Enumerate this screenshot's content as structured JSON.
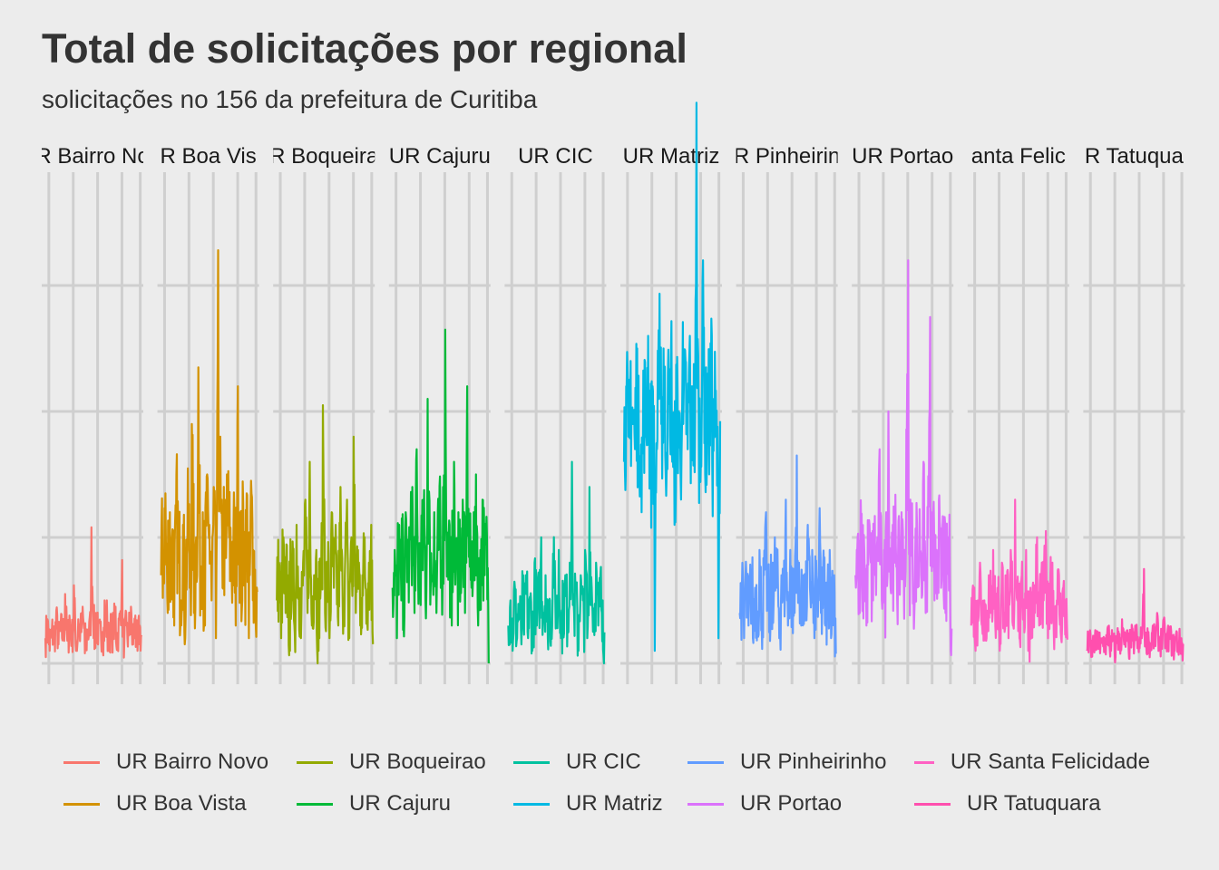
{
  "title": "Total de solicitações por regional",
  "subtitle": "solicitações no 156 da prefeitura de Curitiba",
  "chart_data": {
    "type": "line",
    "facet_by": "regional",
    "x_ticks_labeled": false,
    "y_ticks_labeled": false,
    "ylim": [
      0,
      4
    ],
    "grid": true,
    "legend_position": "bottom",
    "panels": [
      {
        "strip": "R Bairro No",
        "series": "UR Bairro Novo",
        "color": "#F8766D",
        "base": 0.21,
        "noise": 0.17,
        "values": [
          0.2,
          0.35,
          0.1,
          0.28,
          0.22,
          0.42,
          0.15,
          0.3,
          0.25,
          0.55,
          0.18,
          0.38,
          0.2,
          0.62,
          0.1,
          0.35,
          0.3,
          0.45,
          0.08,
          0.27,
          0.33,
          1.08,
          0.2,
          0.4,
          0.15,
          0.32,
          0.25,
          0.5,
          0.12,
          0.3,
          0.28,
          0.45,
          0.2,
          0.35,
          0.82,
          0.18,
          0.3,
          0.22,
          0.45,
          0.15,
          0.38,
          0.1,
          0.3,
          0.2
        ]
      },
      {
        "strip": "R Boa Vis",
        "series": "UR Boa Vista",
        "color": "#D39200",
        "base": 0.85,
        "noise": 0.55,
        "values": [
          0.7,
          0.9,
          1.35,
          0.4,
          1.2,
          0.6,
          1.0,
          0.3,
          1.5,
          0.8,
          0.5,
          1.1,
          0.2,
          0.9,
          1.3,
          0.6,
          1.9,
          0.4,
          1.0,
          2.35,
          0.7,
          1.2,
          0.3,
          1.5,
          0.9,
          1.1,
          0.5,
          1.4,
          0.2,
          3.28,
          1.8,
          0.6,
          1.3,
          0.4,
          1.5,
          1.0,
          0.7,
          1.1,
          0.3,
          2.2,
          1.2,
          0.5,
          1.4,
          0.8,
          1.35,
          0.2,
          1.45,
          0.9,
          0.4,
          0.0
        ]
      },
      {
        "strip": "R Boqueira",
        "series": "UR Boqueirao",
        "color": "#93AA00",
        "base": 0.62,
        "noise": 0.4,
        "values": [
          0.5,
          0.8,
          0.2,
          1.0,
          0.4,
          0.7,
          0.1,
          0.9,
          0.5,
          0.3,
          1.1,
          0.6,
          0.2,
          0.8,
          1.3,
          0.4,
          1.6,
          0.3,
          0.7,
          0.9,
          0.1,
          0.6,
          1.0,
          2.05,
          0.4,
          0.8,
          0.2,
          1.2,
          0.6,
          0.9,
          0.3,
          1.4,
          0.5,
          0.7,
          1.3,
          0.2,
          1.0,
          0.6,
          1.8,
          0.4,
          0.9,
          0.3,
          0.7,
          1.0,
          0.5,
          0.8,
          1.1,
          0.0
        ]
      },
      {
        "strip": "UR Cajuru",
        "series": "UR Cajuru",
        "color": "#00BA38",
        "base": 0.75,
        "noise": 0.45,
        "values": [
          0.6,
          0.9,
          0.2,
          1.1,
          0.5,
          0.8,
          0.3,
          1.2,
          0.7,
          1.0,
          1.4,
          0.4,
          1.7,
          0.6,
          1.1,
          0.9,
          1.3,
          0.5,
          2.1,
          1.0,
          0.7,
          1.2,
          0.4,
          0.9,
          1.5,
          0.6,
          1.4,
          2.65,
          0.8,
          1.1,
          0.3,
          1.6,
          0.9,
          0.5,
          1.2,
          0.7,
          1.3,
          0.4,
          2.2,
          1.0,
          0.6,
          1.2,
          0.8,
          1.5,
          0.3,
          0.9,
          1.3,
          0.7,
          1.0,
          0.0
        ]
      },
      {
        "strip": "UR CIC",
        "series": "UR CIC",
        "color": "#00C19F",
        "base": 0.4,
        "noise": 0.3,
        "values": [
          0.3,
          0.5,
          0.1,
          0.6,
          0.2,
          0.45,
          0.15,
          0.55,
          0.3,
          0.7,
          0.2,
          0.5,
          0.1,
          0.8,
          0.3,
          0.6,
          1.0,
          0.4,
          0.7,
          0.2,
          0.5,
          0.3,
          1.25,
          0.6,
          0.4,
          0.9,
          0.2,
          0.5,
          0.7,
          0.3,
          0.8,
          1.6,
          0.4,
          0.6,
          0.1,
          0.7,
          0.5,
          0.3,
          0.9,
          0.2,
          1.4,
          0.6,
          0.4,
          0.8,
          0.3,
          0.7,
          0.5,
          0.0
        ]
      },
      {
        "strip": "UR Matriz",
        "series": "UR Matriz",
        "color": "#00B9E3",
        "base": 1.9,
        "noise": 0.6,
        "values": [
          1.6,
          2.2,
          1.8,
          1.4,
          2.4,
          1.9,
          1.7,
          2.5,
          1.5,
          2.1,
          1.2,
          2.3,
          1.8,
          2.6,
          1.9,
          1.4,
          2.2,
          0.1,
          1.7,
          2.1,
          3.7,
          1.9,
          2.5,
          1.5,
          2.3,
          1.8,
          2.8,
          1.6,
          1.1,
          2.2,
          2.0,
          1.3,
          2.9,
          1.9,
          2.4,
          1.7,
          2.6,
          1.5,
          2.2,
          1.8,
          4.45,
          2.0,
          1.6,
          2.9,
          3.2,
          1.5,
          2.3,
          1.9,
          2.6,
          1.4,
          2.1,
          1.8,
          0.2,
          2.0
        ]
      },
      {
        "strip": "R Pinheirin",
        "series": "UR Pinheirinho",
        "color": "#619CFF",
        "base": 0.48,
        "noise": 0.35,
        "values": [
          0.4,
          0.6,
          0.2,
          0.7,
          0.3,
          0.5,
          0.8,
          0.2,
          0.6,
          0.4,
          0.9,
          0.3,
          0.7,
          1.2,
          0.5,
          0.3,
          0.8,
          0.4,
          1.0,
          0.6,
          0.2,
          0.7,
          0.5,
          1.3,
          0.3,
          0.9,
          0.6,
          0.4,
          1.65,
          0.5,
          0.8,
          0.3,
          0.7,
          0.4,
          1.1,
          0.6,
          0.9,
          0.2,
          0.7,
          0.5,
          1.4,
          0.4,
          0.8,
          0.3,
          0.6,
          0.9,
          0.4,
          0.7,
          0.0
        ]
      },
      {
        "strip": "UR Portao",
        "series": "UR Portao",
        "color": "#DB72FB",
        "base": 0.75,
        "noise": 0.45,
        "values": [
          0.7,
          1.0,
          0.4,
          1.2,
          0.6,
          0.9,
          0.3,
          1.1,
          0.8,
          0.5,
          1.3,
          0.7,
          1.0,
          1.7,
          0.5,
          0.9,
          0.4,
          1.2,
          2.0,
          0.6,
          1.1,
          0.8,
          1.4,
          0.5,
          0.9,
          1.2,
          0.7,
          1.0,
          3.2,
          0.6,
          1.3,
          0.9,
          0.5,
          1.1,
          0.7,
          1.4,
          0.8,
          1.6,
          0.4,
          1.0,
          2.75,
          0.7,
          1.2,
          0.5,
          0.9,
          1.3,
          0.6,
          1.1,
          0.8,
          0.4,
          1.0,
          0.7,
          0.0
        ]
      },
      {
        "strip": "anta Felic",
        "series": "UR Santa Felicidade",
        "color": "#FF61C3",
        "base": 0.45,
        "noise": 0.3,
        "values": [
          0.3,
          0.6,
          0.1,
          0.5,
          0.8,
          0.3,
          0.5,
          0.2,
          0.7,
          0.4,
          0.9,
          0.3,
          0.6,
          0.1,
          0.8,
          0.4,
          0.6,
          0.2,
          0.9,
          0.3,
          1.3,
          0.5,
          0.2,
          0.7,
          0.4,
          0.9,
          0.1,
          0.6,
          0.4,
          1.0,
          0.3,
          0.7,
          0.5,
          1.05,
          0.2,
          0.6,
          0.8,
          0.3,
          0.5,
          0.7,
          0.2,
          0.6,
          0.4,
          0.0
        ]
      },
      {
        "strip": "R Tatuqua",
        "series": "UR Tatuquara",
        "color": "#FF4FAE",
        "base": 0.15,
        "noise": 0.12,
        "values": [
          0.1,
          0.2,
          0.05,
          0.18,
          0.12,
          0.25,
          0.08,
          0.2,
          0.15,
          0.3,
          0.1,
          0.22,
          0.05,
          0.28,
          0.12,
          0.35,
          0.15,
          0.2,
          0.1,
          0.25,
          0.18,
          0.3,
          0.12,
          0.2,
          0.75,
          0.15,
          0.25,
          0.1,
          0.3,
          0.2,
          0.4,
          0.15,
          0.25,
          0.35,
          0.12,
          0.3,
          0.2,
          0.1,
          0.25,
          0.15,
          0.2,
          0.05
        ]
      }
    ],
    "legend": [
      {
        "label": "UR Bairro Novo",
        "color": "#F8766D"
      },
      {
        "label": "UR Boa Vista",
        "color": "#D39200"
      },
      {
        "label": "UR Boqueirao",
        "color": "#93AA00"
      },
      {
        "label": "UR Cajuru",
        "color": "#00BA38"
      },
      {
        "label": "UR CIC",
        "color": "#00C19F"
      },
      {
        "label": "UR Matriz",
        "color": "#00B9E3"
      },
      {
        "label": "UR Pinheirinho",
        "color": "#619CFF"
      },
      {
        "label": "UR Portao",
        "color": "#DB72FB"
      },
      {
        "label": "UR Santa Felicidade",
        "color": "#FF61C3"
      },
      {
        "label": "UR Tatuquara",
        "color": "#FF4FAE"
      }
    ]
  }
}
